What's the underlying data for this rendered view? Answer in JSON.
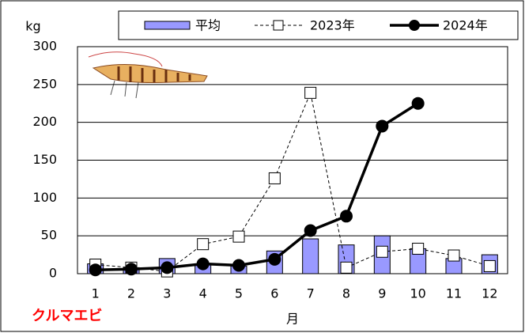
{
  "chart_data": {
    "type": "bar-line",
    "y_label": "kg",
    "x_label": "月",
    "annotation": "クルマエビ",
    "categories": [
      "1",
      "2",
      "3",
      "4",
      "5",
      "6",
      "7",
      "8",
      "9",
      "10",
      "11",
      "12"
    ],
    "series": [
      {
        "name": "平均",
        "type": "bar",
        "color": "#9999ff",
        "values": [
          13,
          8,
          20,
          12,
          10,
          30,
          46,
          38,
          50,
          33,
          20,
          25
        ]
      },
      {
        "name": "2023年",
        "type": "line",
        "style": "dashed",
        "marker": "square",
        "color": "#000000",
        "values": [
          12,
          8,
          3,
          39,
          49,
          126,
          239,
          8,
          29,
          33,
          24,
          10
        ]
      },
      {
        "name": "2024年",
        "type": "line",
        "style": "solid",
        "marker": "circle",
        "color": "#000000",
        "values": [
          5,
          6,
          8,
          13,
          11,
          19,
          57,
          76,
          195,
          225,
          null,
          null
        ]
      }
    ],
    "ylim": [
      0,
      300
    ],
    "yticks": [
      0,
      50,
      100,
      150,
      200,
      250,
      300
    ],
    "grid": true
  }
}
